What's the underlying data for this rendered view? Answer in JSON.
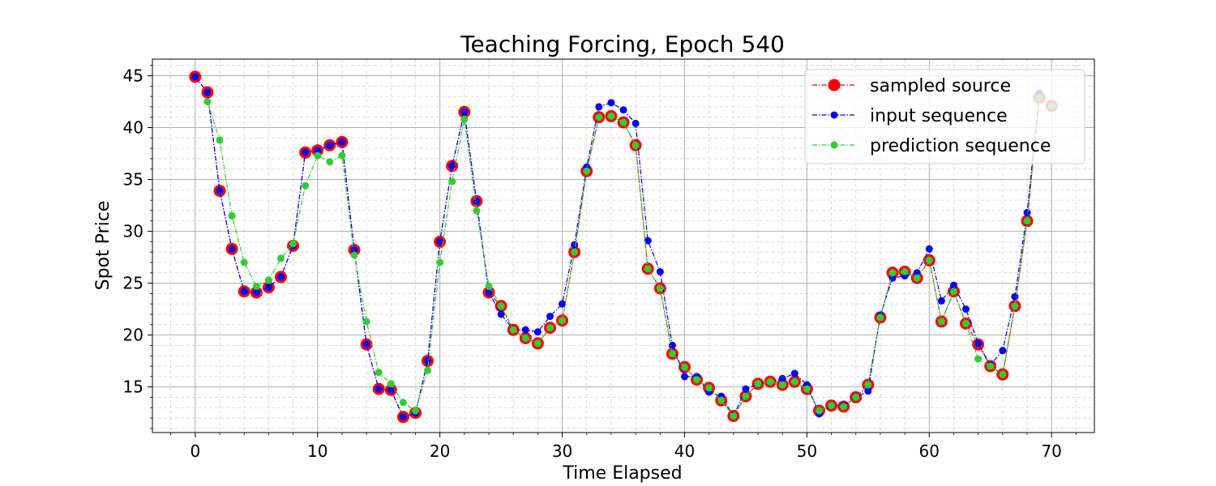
{
  "chart_data": {
    "type": "line",
    "title": "Teaching Forcing, Epoch 540",
    "xlabel": "Time Elapsed",
    "ylabel": "Spot Price",
    "xlim": [
      -3.5,
      73.5
    ],
    "ylim": [
      10.6,
      46.6
    ],
    "xticks": [
      0,
      10,
      20,
      30,
      40,
      50,
      60,
      70
    ],
    "yticks": [
      15,
      20,
      25,
      30,
      35,
      40,
      45
    ],
    "grid": true,
    "minor_grid": true,
    "legend_placement": "top-right",
    "series": [
      {
        "name": "sampled source",
        "color": "#ff0000",
        "marker": "large-circle",
        "x": [
          0,
          1,
          2,
          3,
          4,
          5,
          6,
          7,
          8,
          9,
          10,
          11,
          12,
          13,
          14,
          15,
          16,
          17,
          18,
          19,
          20,
          21,
          22,
          23,
          24,
          25,
          26,
          27,
          28,
          29,
          30,
          31,
          32,
          33,
          34,
          35,
          36,
          37,
          38,
          39,
          40,
          41,
          42,
          43,
          44,
          45,
          46,
          47,
          48,
          49,
          50,
          51,
          52,
          53,
          54,
          55,
          56,
          57,
          58,
          59,
          60,
          61,
          62,
          63,
          64,
          65,
          66,
          67,
          68,
          69,
          70
        ],
        "values": [
          44.9,
          43.4,
          33.9,
          28.3,
          24.2,
          24.1,
          24.6,
          25.6,
          28.6,
          37.6,
          37.8,
          38.3,
          38.6,
          28.2,
          19.1,
          14.8,
          14.7,
          12.1,
          12.5,
          17.5,
          29.0,
          36.3,
          41.5,
          32.9,
          24.1,
          22.8,
          20.5,
          19.7,
          19.2,
          20.7,
          21.4,
          28.0,
          35.8,
          41.0,
          41.1,
          40.5,
          38.3,
          26.4,
          24.5,
          18.2,
          16.9,
          15.7,
          14.9,
          13.7,
          12.2,
          14.1,
          15.3,
          15.5,
          15.2,
          15.5,
          14.8,
          12.7,
          13.2,
          13.1,
          14.0,
          15.2,
          21.7,
          26.0,
          26.1,
          25.5,
          27.2,
          21.3,
          24.2,
          21.1,
          19.1,
          17.0,
          16.2,
          22.8,
          31.0,
          42.9,
          42.1
        ]
      },
      {
        "name": "input sequence",
        "color": "#0000ff",
        "marker": "circle",
        "x": [
          0,
          1,
          2,
          3,
          4,
          5,
          6,
          7,
          8,
          9,
          10,
          11,
          12,
          13,
          14,
          15,
          16,
          17,
          18,
          19,
          20,
          21,
          22,
          23,
          24,
          25,
          26,
          27,
          28,
          29,
          30,
          31,
          32,
          33,
          34,
          35,
          36,
          37,
          38,
          39,
          40,
          41,
          42,
          43,
          44,
          45,
          46,
          47,
          48,
          49,
          50,
          51,
          52,
          53,
          54,
          55,
          56,
          57,
          58,
          59,
          60,
          61,
          62,
          63,
          64,
          65,
          66,
          67,
          68,
          69
        ],
        "values": [
          44.9,
          43.4,
          33.9,
          28.3,
          24.2,
          24.1,
          24.6,
          25.6,
          28.6,
          37.6,
          37.8,
          38.3,
          38.6,
          28.2,
          19.1,
          14.8,
          14.7,
          12.1,
          12.5,
          17.5,
          29.0,
          36.3,
          41.5,
          32.9,
          24.1,
          22.0,
          20.5,
          20.5,
          20.3,
          21.8,
          23.0,
          28.7,
          36.2,
          42.0,
          42.4,
          41.7,
          40.4,
          29.1,
          26.1,
          19.0,
          16.0,
          16.0,
          14.5,
          14.1,
          12.2,
          14.8,
          15.3,
          15.5,
          15.8,
          16.3,
          15.2,
          12.4,
          13.2,
          13.2,
          14.0,
          14.6,
          21.9,
          25.5,
          25.7,
          26.0,
          28.3,
          23.3,
          24.8,
          22.5,
          19.2,
          17.1,
          18.5,
          23.7,
          31.8,
          43.3
        ]
      },
      {
        "name": "prediction sequence",
        "color": "#32cd32",
        "marker": "circle",
        "x": [
          1,
          2,
          3,
          4,
          5,
          6,
          7,
          8,
          9,
          10,
          11,
          12,
          13,
          14,
          15,
          16,
          17,
          18,
          19,
          20,
          21,
          22,
          23,
          24,
          25,
          26,
          27,
          28,
          29,
          30,
          31,
          32,
          33,
          34,
          35,
          36,
          37,
          38,
          39,
          40,
          41,
          42,
          43,
          44,
          45,
          46,
          47,
          48,
          49,
          50,
          51,
          52,
          53,
          54,
          55,
          56,
          57,
          58,
          59,
          60,
          61,
          62,
          63,
          64,
          65,
          66,
          67,
          68,
          69,
          70
        ],
        "values": [
          42.5,
          38.8,
          31.5,
          27.0,
          24.7,
          25.3,
          27.4,
          28.8,
          34.4,
          37.3,
          36.7,
          37.3,
          27.7,
          21.3,
          16.4,
          15.3,
          13.5,
          12.7,
          16.6,
          27.0,
          34.8,
          40.8,
          32.0,
          24.7,
          22.8,
          20.5,
          19.7,
          19.2,
          20.7,
          21.4,
          28.0,
          35.8,
          41.0,
          41.1,
          40.5,
          38.3,
          26.4,
          24.5,
          18.2,
          16.9,
          15.7,
          14.9,
          13.7,
          12.2,
          14.1,
          15.3,
          15.5,
          15.2,
          15.5,
          14.8,
          12.7,
          13.2,
          13.1,
          14.0,
          15.2,
          21.7,
          26.0,
          26.1,
          25.5,
          27.2,
          21.3,
          24.2,
          21.1,
          17.7,
          17.0,
          16.2,
          22.8,
          31.0,
          42.9,
          42.1
        ]
      }
    ]
  }
}
